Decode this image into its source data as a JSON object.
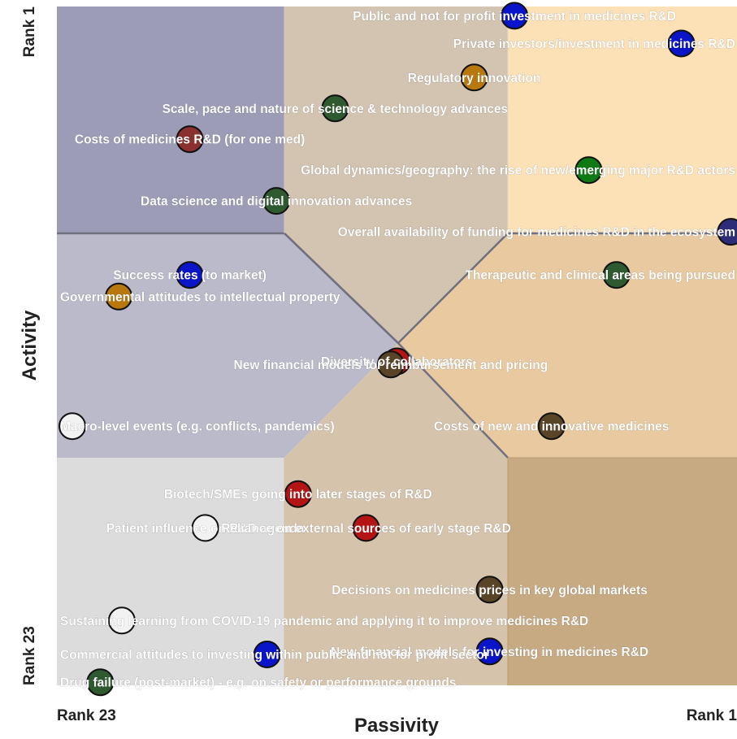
{
  "chart_data": {
    "type": "scatter",
    "xlabel": "Passivity",
    "ylabel": "Activity",
    "x_tick_labels": [
      "Rank 23",
      "Rank 1"
    ],
    "y_tick_labels": [
      "Rank 23",
      "Rank 1"
    ],
    "xlim": [
      23,
      1
    ],
    "ylim": [
      23,
      1
    ],
    "grid": false,
    "colors": {
      "blue": "#0a14c8",
      "navy": "#2c2c78",
      "orange": "#b8780e",
      "dark_green": "#2f5a30",
      "green": "#0f7a14",
      "red": "#b41414",
      "maroon": "#8a3030",
      "brown": "#5a4428",
      "white": "#f2f2f2"
    },
    "points": [
      {
        "label": "Public and not for profit investment in medicines R&D",
        "x": 8.2,
        "y": 1.3,
        "color": "blue"
      },
      {
        "label": "Private investors/investment in medicines R&D",
        "x": 2.8,
        "y": 2.2,
        "color": "blue"
      },
      {
        "label": "Regulatory innovation",
        "x": 9.5,
        "y": 3.3,
        "color": "orange"
      },
      {
        "label": "Scale, pace and nature of science & technology advances",
        "x": 14.0,
        "y": 4.3,
        "color": "dark_green"
      },
      {
        "label": "Costs of medicines R&D (for one med)",
        "x": 18.7,
        "y": 5.3,
        "color": "maroon"
      },
      {
        "label": "Global dynamics/geography: the rise of new/emerging major R&D actors",
        "x": 5.8,
        "y": 6.3,
        "color": "green"
      },
      {
        "label": "Data science and digital innovation advances",
        "x": 15.9,
        "y": 7.3,
        "color": "dark_green"
      },
      {
        "label": "Overall availability of funding for medicines R&D in the ecosystem",
        "x": 1.2,
        "y": 8.3,
        "color": "navy"
      },
      {
        "label": "Success rates (to market)",
        "x": 18.7,
        "y": 9.7,
        "color": "blue"
      },
      {
        "label": "Therapeutic and clinical areas being pursued",
        "x": 4.9,
        "y": 9.7,
        "color": "dark_green"
      },
      {
        "label": "Governmental attitudes to intellectual property",
        "x": 21.0,
        "y": 10.4,
        "color": "orange"
      },
      {
        "label": "Diversity of collaborators",
        "x": 12.0,
        "y": 12.5,
        "color": "red"
      },
      {
        "label": "New financial models for reimbursement and pricing",
        "x": 12.2,
        "y": 12.6,
        "color": "brown"
      },
      {
        "label": "Macro-level events (e.g. conflicts, pandemics)",
        "x": 22.5,
        "y": 14.6,
        "color": "white"
      },
      {
        "label": "Costs of new and innovative medicines",
        "x": 7.0,
        "y": 14.6,
        "color": "brown"
      },
      {
        "label": "Biotech/SMEs going into later stages of R&D",
        "x": 15.2,
        "y": 16.8,
        "color": "red"
      },
      {
        "label": "Patient influence on R&D agenda",
        "x": 18.2,
        "y": 17.9,
        "color": "white"
      },
      {
        "label": "Reliance on external sources of early stage R&D",
        "x": 13.0,
        "y": 17.9,
        "color": "red"
      },
      {
        "label": "Decisions on medicines prices in key global markets",
        "x": 9.0,
        "y": 19.9,
        "color": "brown"
      },
      {
        "label": "Sustaining learning from COVID-19 pandemic and applying it to improve medicines R&D",
        "x": 20.9,
        "y": 20.9,
        "color": "white"
      },
      {
        "label": "New financial models for investing in medicines R&D",
        "x": 9.0,
        "y": 21.9,
        "color": "blue"
      },
      {
        "label": "Commercial attitudes to investing within public and not for profit sector",
        "x": 16.2,
        "y": 22.0,
        "color": "blue"
      },
      {
        "label": "Drug failure (post-market) - e.g. on safety or performance grounds",
        "x": 21.6,
        "y": 22.9,
        "color": "dark_green"
      }
    ]
  }
}
